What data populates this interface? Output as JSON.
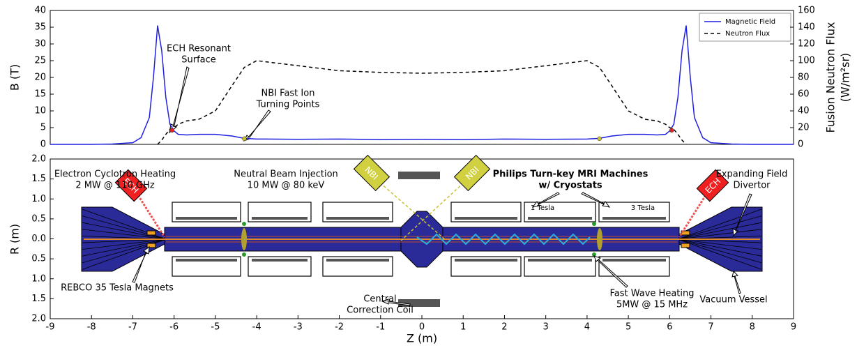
{
  "chart_data": [
    {
      "type": "line",
      "ylabel": "B (T)",
      "y2label": [
        "Fusion Neutron Flux",
        "(W/m²sr)"
      ],
      "x": [
        -9,
        -8,
        -7.5,
        -7,
        -6.8,
        -6.6,
        -6.5,
        -6.4,
        -6.3,
        -6.2,
        -6.1,
        -6.0,
        -5.9,
        -5.7,
        -5.4,
        -5,
        -4.6,
        -4.3,
        -4,
        -3,
        -2,
        -1,
        0,
        1,
        2,
        3,
        4,
        4.3,
        4.6,
        5,
        5.4,
        5.7,
        5.9,
        6.0,
        6.1,
        6.2,
        6.3,
        6.4,
        6.5,
        6.6,
        6.8,
        7,
        7.5,
        8,
        9
      ],
      "series": [
        {
          "name": "Magnetic Field",
          "color": "#1f1fe0",
          "dash": false,
          "values": [
            0,
            0,
            0.1,
            0.5,
            2,
            8,
            20,
            35.5,
            28,
            14,
            6,
            4,
            3,
            2.8,
            3,
            3,
            2.5,
            1.8,
            1.6,
            1.5,
            1.6,
            1.4,
            1.5,
            1.4,
            1.6,
            1.5,
            1.6,
            1.8,
            2.5,
            3,
            3,
            2.8,
            3,
            4,
            6,
            14,
            28,
            35.5,
            20,
            8,
            2,
            0.5,
            0.1,
            0,
            0
          ]
        },
        {
          "name": "Neutron Flux",
          "color": "#000000",
          "dash": true,
          "axis": "y2",
          "values": [
            null,
            null,
            null,
            null,
            null,
            null,
            null,
            0,
            5,
            12,
            18,
            20,
            24,
            28,
            30,
            40,
            70,
            92,
            100,
            94,
            88,
            86,
            85,
            86,
            88,
            94,
            100,
            92,
            70,
            40,
            30,
            28,
            24,
            20,
            18,
            12,
            5,
            0,
            null,
            null,
            null,
            null,
            null,
            null,
            null
          ]
        }
      ],
      "annotations": [
        {
          "text": [
            "ECH Resonant",
            "Surface"
          ],
          "color": "#e02020",
          "x": [
            -6.05,
            6.05
          ],
          "y": [
            4.2,
            4.2
          ]
        },
        {
          "text": [
            "NBI Fast Ion",
            "Turning Points"
          ],
          "color": "#c8c030",
          "x": [
            -4.3,
            4.3
          ],
          "y": [
            1.7,
            1.7
          ]
        }
      ],
      "xlim": [
        -9,
        9
      ],
      "ylim": [
        0,
        40
      ],
      "yticks": [
        0,
        5,
        10,
        15,
        20,
        25,
        30,
        35,
        40
      ],
      "y2lim": [
        0,
        160
      ],
      "y2ticks": [
        0,
        20,
        40,
        60,
        80,
        100,
        120,
        140,
        160
      ],
      "legend": "upper right"
    },
    {
      "type": "diagram",
      "xlabel": "Z (m)",
      "ylabel": "R (m)",
      "xlim": [
        -9,
        9
      ],
      "xticks": [
        -9,
        -8,
        -7,
        -6,
        -5,
        -4,
        -3,
        -2,
        -1,
        0,
        1,
        2,
        3,
        4,
        5,
        6,
        7,
        8,
        9
      ],
      "ylim": [
        -2,
        2
      ],
      "yticks": [
        {
          "value": 2,
          "label": "2.0"
        },
        1.5,
        {
          "value": 1,
          "label": "1.0"
        },
        0.5,
        {
          "value": 0,
          "label": "0.0"
        },
        {
          "value": -0.5,
          "label": "0.5"
        },
        {
          "value": -1,
          "label": "1.0"
        },
        {
          "value": -1.5,
          "label": "1.5"
        },
        {
          "value": -2,
          "label": "2.0"
        }
      ],
      "labels": {
        "ech": [
          "Electron Cyclotron Heating",
          "2 MW @ 110 GHz"
        ],
        "nbi": [
          "Neutral Beam Injection",
          "10 MW @ 80 keV"
        ],
        "mri": [
          "Philips Turn-key MRI Machines",
          "w/ Cryostats"
        ],
        "tesla1": "1 Tesla",
        "tesla3": "3 Tesla",
        "divertor": [
          "Expanding Field",
          "Divertor"
        ],
        "rebco": "REBCO 35 Tesla Magnets",
        "central": [
          "Central",
          "Correction Coil"
        ],
        "fastwave": [
          "Fast Wave Heating",
          "5MW @ 15 MHz"
        ],
        "vessel": "Vacuum Vessel",
        "ech_box": "ECH",
        "nbi_box": "NBI"
      }
    }
  ]
}
